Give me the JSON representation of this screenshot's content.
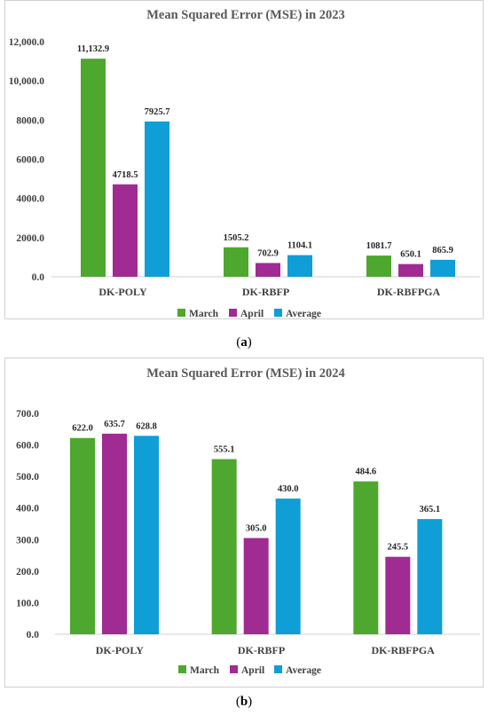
{
  "colors": {
    "march": "#4ea72e",
    "april": "#a02b93",
    "average": "#0f9ed5"
  },
  "captions": {
    "a_open": "(",
    "a_letter": "a",
    "a_close": ")",
    "b_open": "(",
    "b_letter": "b",
    "b_close": ")"
  },
  "chart_data": [
    {
      "type": "bar",
      "title": "Mean Squared Error (MSE)  in 2023",
      "categories": [
        "DK-POLY",
        "DK-RBFP",
        "DK-RBFPGA"
      ],
      "series": [
        {
          "name": "March",
          "values": [
            11132.9,
            1505.2,
            1081.7
          ],
          "labels": [
            "11,132.9",
            "1505.2",
            "1081.7"
          ]
        },
        {
          "name": "April",
          "values": [
            4718.5,
            702.9,
            650.1
          ],
          "labels": [
            "4718.5",
            "702.9",
            "650.1"
          ]
        },
        {
          "name": "Average",
          "values": [
            7925.7,
            1104.1,
            865.9
          ],
          "labels": [
            "7925.7",
            "1104.1",
            "865.9"
          ]
        }
      ],
      "ylim": [
        0,
        12000
      ],
      "yticks": [
        0,
        2000,
        4000,
        6000,
        8000,
        10000,
        12000
      ],
      "ytick_labels": [
        "0.0",
        "2000.0",
        "4000.0",
        "6000.0",
        "8000.0",
        "10,000.0",
        "12,000.0"
      ],
      "legend": "bottom",
      "grid": false
    },
    {
      "type": "bar",
      "title": "Mean Squared Error (MSE)  in 2024",
      "categories": [
        "DK-POLY",
        "DK-RBFP",
        "DK-RBFPGA"
      ],
      "series": [
        {
          "name": "March",
          "values": [
            622.0,
            555.1,
            484.6
          ],
          "labels": [
            "622.0",
            "555.1",
            "484.6"
          ]
        },
        {
          "name": "April",
          "values": [
            635.7,
            305.0,
            245.5
          ],
          "labels": [
            "635.7",
            "305.0",
            "245.5"
          ]
        },
        {
          "name": "Average",
          "values": [
            628.8,
            430.0,
            365.1
          ],
          "labels": [
            "628.8",
            "430.0",
            "365.1"
          ]
        }
      ],
      "ylim": [
        0,
        700
      ],
      "yticks": [
        0,
        100,
        200,
        300,
        400,
        500,
        600,
        700
      ],
      "ytick_labels": [
        "0.0",
        "100.0",
        "200.0",
        "300.0",
        "400.0",
        "500.0",
        "600.0",
        "700.0"
      ],
      "legend": "bottom",
      "grid": false
    }
  ]
}
